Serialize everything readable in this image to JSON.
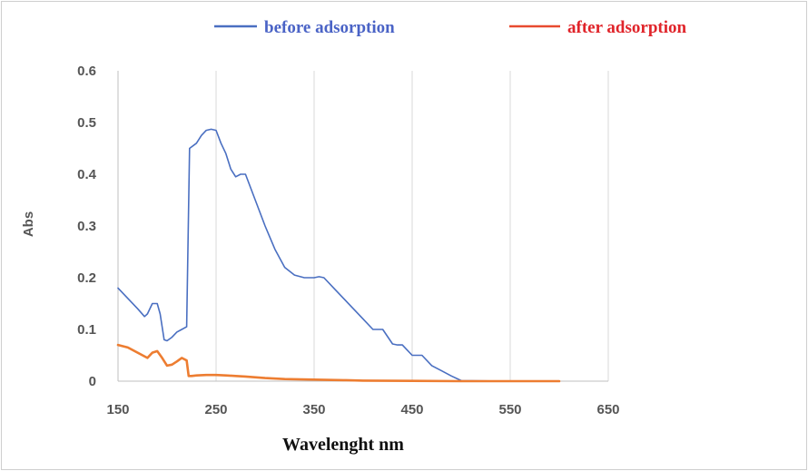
{
  "chart_data": {
    "type": "line",
    "xlabel": "Wavelenght nm",
    "ylabel": "Abs",
    "xlim": [
      150,
      650
    ],
    "ylim": [
      0,
      0.6
    ],
    "xticks": [
      150,
      250,
      350,
      450,
      550,
      650
    ],
    "yticks": [
      0,
      0.1,
      0.2,
      0.3,
      0.4,
      0.5,
      0.6
    ],
    "ytick_labels": [
      "0",
      "0.1",
      "0.2",
      "0.3",
      "0.4",
      "0.5",
      "0.6"
    ],
    "grid": "vertical",
    "legend_position": "top",
    "series": [
      {
        "name": "before adsorption",
        "color": "#4a6fc1",
        "x": [
          150,
          160,
          170,
          177,
          180,
          185,
          190,
          193,
          197,
          200,
          205,
          210,
          215,
          220,
          223,
          230,
          235,
          240,
          245,
          250,
          255,
          260,
          265,
          270,
          275,
          280,
          290,
          300,
          310,
          320,
          330,
          340,
          350,
          355,
          360,
          370,
          380,
          390,
          400,
          410,
          420,
          430,
          435,
          440,
          445,
          450,
          455,
          460,
          470,
          480,
          490,
          500,
          550,
          600
        ],
        "y": [
          0.18,
          0.16,
          0.14,
          0.125,
          0.13,
          0.15,
          0.15,
          0.13,
          0.08,
          0.078,
          0.085,
          0.095,
          0.1,
          0.105,
          0.45,
          0.46,
          0.475,
          0.485,
          0.487,
          0.485,
          0.46,
          0.44,
          0.41,
          0.395,
          0.4,
          0.4,
          0.35,
          0.3,
          0.255,
          0.22,
          0.205,
          0.2,
          0.2,
          0.202,
          0.2,
          0.18,
          0.16,
          0.14,
          0.12,
          0.1,
          0.1,
          0.072,
          0.07,
          0.07,
          0.06,
          0.05,
          0.05,
          0.05,
          0.03,
          0.02,
          0.01,
          0.001,
          0.0,
          0.0
        ]
      },
      {
        "name": "after adsorption",
        "color": "#ed7d31",
        "x": [
          150,
          160,
          170,
          180,
          185,
          190,
          195,
          200,
          205,
          210,
          215,
          220,
          222,
          225,
          230,
          240,
          250,
          260,
          270,
          280,
          300,
          320,
          350,
          380,
          400,
          450,
          500,
          550,
          600
        ],
        "y": [
          0.07,
          0.065,
          0.055,
          0.045,
          0.055,
          0.058,
          0.045,
          0.03,
          0.032,
          0.038,
          0.045,
          0.04,
          0.01,
          0.01,
          0.011,
          0.012,
          0.012,
          0.011,
          0.01,
          0.009,
          0.006,
          0.004,
          0.003,
          0.002,
          0.001,
          0.0005,
          0.0,
          0.0,
          0.0
        ]
      }
    ]
  },
  "legend": [
    {
      "label": "before adsorption",
      "line_color": "#4a6fc1",
      "text_color": "#4a63c6"
    },
    {
      "label": "after adsorption",
      "line_color": "#e84a2f",
      "text_color": "#e0242a"
    }
  ]
}
